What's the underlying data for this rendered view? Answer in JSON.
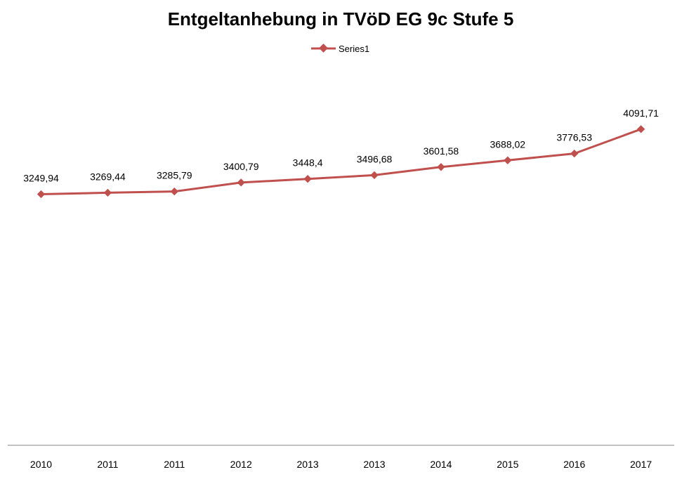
{
  "chart_data": {
    "type": "line",
    "title": "Entgeltanhebung in TVöD EG 9c Stufe 5",
    "xlabel": "",
    "ylabel": "",
    "categories": [
      "2010",
      "2011",
      "2011",
      "2012",
      "2013",
      "2013",
      "2014",
      "2015",
      "2016",
      "2017"
    ],
    "series": [
      {
        "name": "Series1",
        "color": "#c0504d",
        "values": [
          3249.94,
          3269.44,
          3285.79,
          3400.79,
          3448.4,
          3496.68,
          3601.58,
          3688.02,
          3776.53,
          4091.71
        ],
        "value_labels": [
          "3249,94",
          "3269,44",
          "3285,79",
          "3400,79",
          "3448,4",
          "3496,68",
          "3601,58",
          "3688,02",
          "3776,53",
          "4091,71"
        ]
      }
    ],
    "legend_position": "top",
    "grid": false,
    "y_axis_visible": false,
    "ylim": [
      0,
      4800
    ]
  }
}
